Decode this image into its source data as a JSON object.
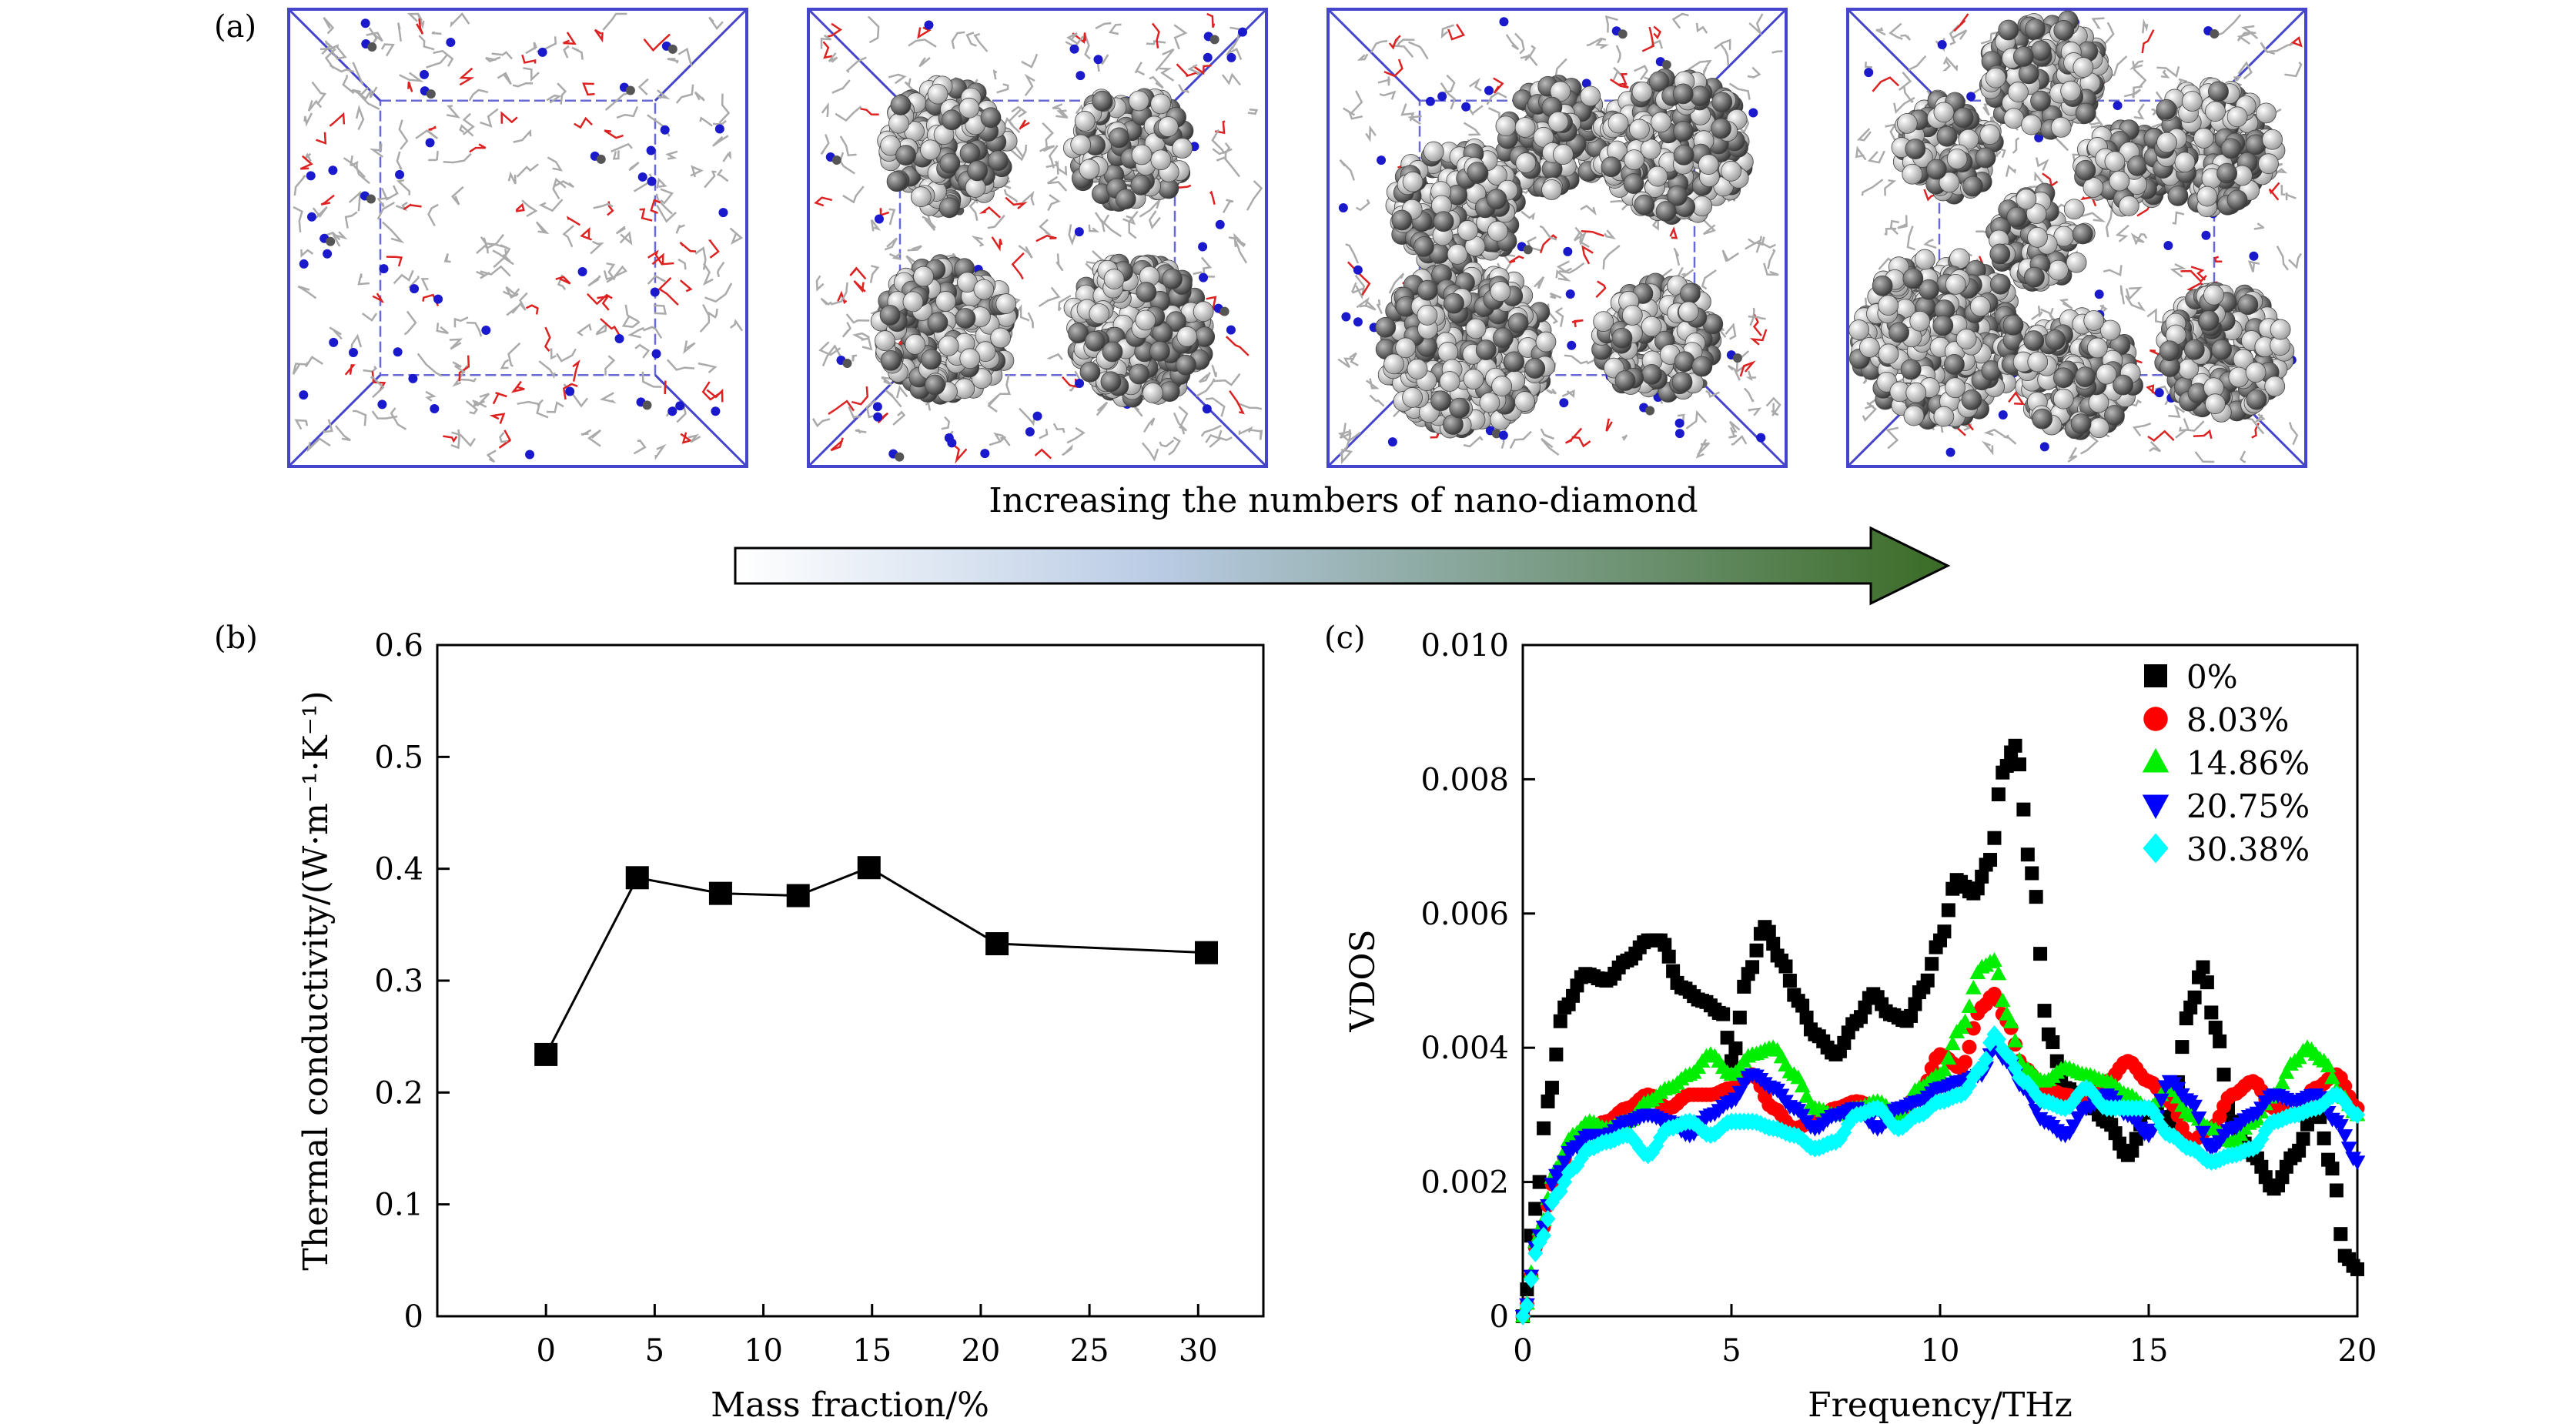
{
  "figure": {
    "panel_a_label": "(a)",
    "panel_b_label": "(b)",
    "panel_c_label": "(c)",
    "arrow_caption": "Increasing the numbers of nano-diamond"
  },
  "snapshots": [
    {
      "name": "md-snapshot-0",
      "nanodiamonds": 0
    },
    {
      "name": "md-snapshot-4",
      "nanodiamonds": 4
    },
    {
      "name": "md-snapshot-5",
      "nanodiamonds": 5
    },
    {
      "name": "md-snapshot-8",
      "nanodiamonds": 8
    }
  ],
  "colors": {
    "box_edge": "#4444cc",
    "atom_light": "#f2f2f2",
    "atom_dark": "#555555",
    "nitrogen": "#1a1acc",
    "oxygen": "#dd2222",
    "bond": "#aaaaaa",
    "arrow_start": "#ffffff",
    "arrow_end": "#3a6b25"
  },
  "chart_data": [
    {
      "type": "line",
      "xlabel": "Mass fraction/%",
      "ylabel": "Thermal conductivity/(W·m⁻¹·K⁻¹)",
      "xlim": [
        -5,
        33
      ],
      "ylim": [
        0,
        0.6
      ],
      "xticks": [
        "0",
        "5",
        "10",
        "15",
        "20",
        "25",
        "30"
      ],
      "yticks": [
        "0",
        "0.1",
        "0.2",
        "0.3",
        "0.4",
        "0.5",
        "0.6"
      ],
      "marker": "square",
      "color": "#000000",
      "x": [
        0,
        4.2,
        8.03,
        11.6,
        14.86,
        20.75,
        30.38
      ],
      "y": [
        0.234,
        0.392,
        0.378,
        0.376,
        0.401,
        0.333,
        0.325
      ]
    },
    {
      "type": "scatter",
      "xlabel": "Frequency/THz",
      "ylabel": "VDOS",
      "xlim": [
        0,
        20
      ],
      "ylim": [
        0,
        0.01
      ],
      "xticks": [
        "0",
        "5",
        "10",
        "15",
        "20"
      ],
      "yticks": [
        "0",
        "0.002",
        "0.004",
        "0.006",
        "0.008",
        "0.010"
      ],
      "legend": "top-right",
      "series": [
        {
          "name": "0%",
          "marker": "square",
          "color": "#000000",
          "x": [
            0,
            0.3,
            0.6,
            1,
            1.5,
            2,
            2.5,
            3,
            3.3,
            3.8,
            4.3,
            4.8,
            5,
            5.4,
            5.8,
            6.2,
            6.6,
            7,
            7.5,
            8,
            8.4,
            8.8,
            9.2,
            9.6,
            10,
            10.4,
            10.8,
            11.2,
            11.5,
            11.8,
            12.2,
            12.6,
            13,
            13.5,
            14,
            14.5,
            15,
            15.5,
            16,
            16.3,
            16.6,
            17,
            17.5,
            18,
            18.5,
            19,
            19.4,
            19.7,
            20
          ],
          "y": [
            0,
            0.0016,
            0.0032,
            0.0046,
            0.0051,
            0.005,
            0.0053,
            0.0056,
            0.0056,
            0.0049,
            0.0047,
            0.0045,
            0.0038,
            0.0051,
            0.0058,
            0.0053,
            0.0047,
            0.0042,
            0.0039,
            0.0044,
            0.0048,
            0.0045,
            0.0044,
            0.0049,
            0.0056,
            0.0065,
            0.0063,
            0.0068,
            0.0081,
            0.0085,
            0.0066,
            0.0042,
            0.0034,
            0.0032,
            0.0029,
            0.0024,
            0.0031,
            0.0029,
            0.0046,
            0.0052,
            0.0043,
            0.0029,
            0.0024,
            0.0019,
            0.0024,
            0.0031,
            0.0022,
            0.0009,
            0.0007
          ]
        },
        {
          "name": "8.03%",
          "marker": "circle",
          "color": "#ff0000",
          "x": [
            0,
            0.4,
            0.8,
            1.2,
            1.6,
            2,
            2.5,
            3,
            3.5,
            4,
            4.5,
            5,
            5.5,
            6,
            6.5,
            7,
            7.5,
            8,
            8.5,
            9,
            9.5,
            10,
            10.5,
            11,
            11.3,
            11.6,
            12,
            12.5,
            13,
            13.5,
            14,
            14.5,
            15,
            15.5,
            16,
            16.5,
            17,
            17.5,
            18,
            18.5,
            19,
            19.5,
            20
          ],
          "y": [
            0,
            0.0012,
            0.0021,
            0.0026,
            0.0028,
            0.0029,
            0.0031,
            0.0033,
            0.0031,
            0.0033,
            0.0033,
            0.0034,
            0.0036,
            0.0031,
            0.0028,
            0.0029,
            0.0031,
            0.0032,
            0.0031,
            0.003,
            0.0033,
            0.0039,
            0.0037,
            0.0046,
            0.0048,
            0.0044,
            0.0037,
            0.0034,
            0.0033,
            0.0032,
            0.0035,
            0.0038,
            0.0035,
            0.0032,
            0.0026,
            0.0028,
            0.0033,
            0.0035,
            0.0031,
            0.003,
            0.0034,
            0.0036,
            0.0031
          ]
        },
        {
          "name": "14.86%",
          "marker": "triangle-up",
          "color": "#00ee00",
          "x": [
            0,
            0.4,
            0.8,
            1.2,
            1.6,
            2,
            2.5,
            3,
            3.5,
            4,
            4.5,
            5,
            5.5,
            6,
            6.5,
            7,
            7.5,
            8,
            8.5,
            9,
            9.5,
            10,
            10.5,
            11,
            11.3,
            11.6,
            12,
            12.5,
            13,
            13.5,
            14,
            14.5,
            15,
            15.5,
            16,
            16.5,
            17,
            17.5,
            18,
            18.5,
            18.8,
            19.2,
            19.6,
            20
          ],
          "y": [
            0,
            0.0013,
            0.0022,
            0.0027,
            0.0029,
            0.0028,
            0.0029,
            0.0032,
            0.0034,
            0.0036,
            0.0039,
            0.0036,
            0.0039,
            0.004,
            0.0036,
            0.0031,
            0.003,
            0.0031,
            0.0032,
            0.003,
            0.0034,
            0.0036,
            0.0043,
            0.0052,
            0.0053,
            0.0045,
            0.0037,
            0.0035,
            0.0037,
            0.0036,
            0.0035,
            0.0033,
            0.0031,
            0.0034,
            0.003,
            0.0028,
            0.0026,
            0.0029,
            0.0033,
            0.0038,
            0.004,
            0.0038,
            0.0033,
            0.003
          ]
        },
        {
          "name": "20.75%",
          "marker": "triangle-down",
          "color": "#0000ff",
          "x": [
            0,
            0.4,
            0.8,
            1.2,
            1.6,
            2,
            2.5,
            3,
            3.5,
            4,
            4.5,
            5,
            5.5,
            6,
            6.5,
            7,
            7.5,
            8,
            8.5,
            9,
            9.5,
            10,
            10.5,
            11,
            11.3,
            11.6,
            12,
            12.5,
            13,
            13.5,
            14,
            14.5,
            15,
            15.5,
            16,
            16.5,
            17,
            17.5,
            18,
            18.5,
            19,
            19.5,
            20
          ],
          "y": [
            0,
            0.0012,
            0.0021,
            0.0025,
            0.0027,
            0.0027,
            0.0029,
            0.003,
            0.0029,
            0.0027,
            0.003,
            0.0032,
            0.0036,
            0.0034,
            0.0031,
            0.0028,
            0.003,
            0.0031,
            0.0028,
            0.0031,
            0.0032,
            0.0034,
            0.0035,
            0.0036,
            0.004,
            0.0038,
            0.0034,
            0.0029,
            0.0027,
            0.0031,
            0.0033,
            0.003,
            0.0027,
            0.0035,
            0.0032,
            0.0025,
            0.0028,
            0.003,
            0.0033,
            0.0032,
            0.0033,
            0.0029,
            0.0023
          ]
        },
        {
          "name": "30.38%",
          "marker": "diamond",
          "color": "#00ffff",
          "x": [
            0,
            0.4,
            0.8,
            1.2,
            1.6,
            2,
            2.5,
            3,
            3.5,
            4,
            4.5,
            5,
            5.5,
            6,
            6.5,
            7,
            7.5,
            8,
            8.5,
            9,
            9.5,
            10,
            10.5,
            11,
            11.3,
            11.6,
            12,
            12.5,
            13,
            13.5,
            14,
            14.5,
            15,
            15.5,
            16,
            16.5,
            17,
            17.5,
            18,
            18.5,
            19,
            19.5,
            20
          ],
          "y": [
            0,
            0.0011,
            0.0018,
            0.0022,
            0.0025,
            0.0026,
            0.0027,
            0.0024,
            0.0028,
            0.0029,
            0.0027,
            0.0029,
            0.0029,
            0.0028,
            0.0027,
            0.0025,
            0.0026,
            0.003,
            0.0031,
            0.0028,
            0.003,
            0.0032,
            0.0033,
            0.0037,
            0.0042,
            0.0039,
            0.0035,
            0.0032,
            0.0031,
            0.0034,
            0.0031,
            0.0031,
            0.0031,
            0.0027,
            0.0025,
            0.0023,
            0.0024,
            0.0025,
            0.0029,
            0.003,
            0.0031,
            0.0033,
            0.003
          ]
        }
      ]
    }
  ]
}
